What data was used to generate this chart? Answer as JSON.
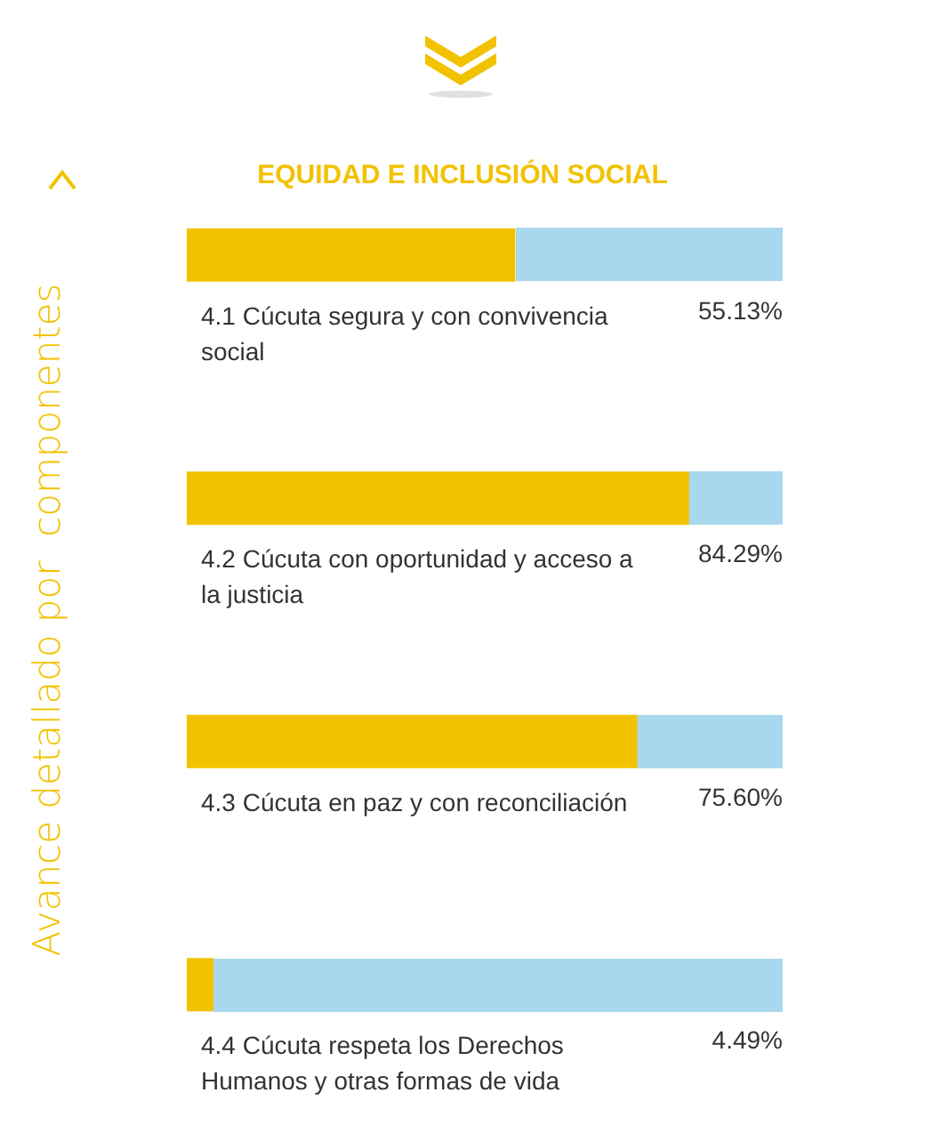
{
  "chart_data": {
    "type": "bar",
    "orientation": "horizontal",
    "title": "EQUIDAD E INCLUSIÓN SOCIAL",
    "ylabel": "Avance detallado por  componentes",
    "categories": [
      "4.1 Cúcuta segura y con convivencia social",
      "4.2 Cúcuta con oportunidad y acceso a la justicia",
      "4.3 Cúcuta en paz y con reconciliación",
      "4.4 Cúcuta respeta los Derechos Humanos y otras formas de vida"
    ],
    "series": [
      {
        "color": "#f2c200",
        "values": [
          55.13,
          84.29,
          75.6,
          4.49
        ],
        "value_labels": [
          "55.13%",
          "84.29%",
          "75.60%",
          "4.49%"
        ]
      }
    ],
    "xlim": [
      0,
      100
    ]
  }
}
